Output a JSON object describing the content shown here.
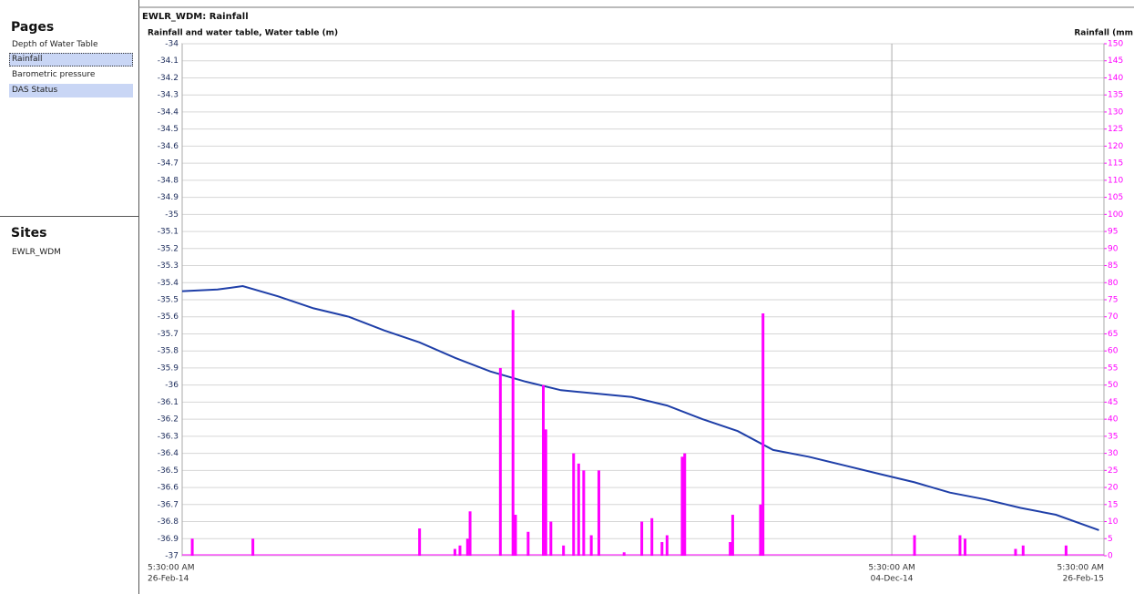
{
  "pages": {
    "title": "Pages",
    "items": [
      "Depth of Water Table",
      "Rainfall",
      "Barometric pressure",
      "DAS Status"
    ]
  },
  "sites": {
    "title": "Sites",
    "items": [
      "EWLR_WDM"
    ]
  },
  "chart_data": {
    "type": "combo",
    "title": "EWLR_WDM: Rainfall",
    "ylabel": "Rainfall and water table, Water table (m)",
    "y2label": "Rainfall (mm",
    "xlim": [
      "2014-02-26",
      "2015-02-26"
    ],
    "xticks": [
      {
        "value": "2014-02-26",
        "label": [
          "5:30:00 AM",
          "26-Feb-14"
        ]
      },
      {
        "value": "2014-12-04",
        "label": [
          "5:30:00 AM",
          "04-Dec-14"
        ]
      },
      {
        "value": "2015-02-26",
        "label": [
          "5:30:00 AM",
          "26-Feb-15"
        ]
      }
    ],
    "ylim": [
      -37,
      -34
    ],
    "yticks": [
      -34,
      -34.1,
      -34.2,
      -34.3,
      -34.4,
      -34.5,
      -34.6,
      -34.7,
      -34.8,
      -34.9,
      -35,
      -35.1,
      -35.2,
      -35.3,
      -35.4,
      -35.5,
      -35.6,
      -35.7,
      -35.8,
      -35.9,
      -36,
      -36.1,
      -36.2,
      -36.3,
      -36.4,
      -36.5,
      -36.6,
      -36.7,
      -36.8,
      -36.9,
      -37
    ],
    "y2lim": [
      0,
      150
    ],
    "y2ticks": [
      0,
      5,
      10,
      15,
      20,
      25,
      30,
      35,
      40,
      45,
      50,
      55,
      60,
      65,
      70,
      75,
      80,
      85,
      90,
      95,
      100,
      105,
      110,
      115,
      120,
      125,
      130,
      135,
      140,
      145,
      150
    ],
    "grid": true,
    "series": [
      {
        "type": "line",
        "color": "#1f3fa8",
        "x": [
          "2014-02-26",
          "2014-03-12",
          "2014-03-22",
          "2014-04-05",
          "2014-04-19",
          "2014-05-03",
          "2014-05-17",
          "2014-05-31",
          "2014-06-14",
          "2014-06-28",
          "2014-07-12",
          "2014-07-26",
          "2014-08-09",
          "2014-08-23",
          "2014-09-06",
          "2014-09-20",
          "2014-10-04",
          "2014-10-18",
          "2014-11-01",
          "2014-11-15",
          "2014-11-29",
          "2014-12-13",
          "2014-12-27",
          "2015-01-10",
          "2015-01-24",
          "2015-02-07",
          "2015-02-24"
        ],
        "values": [
          -35.45,
          -35.44,
          -35.42,
          -35.48,
          -35.55,
          -35.6,
          -35.68,
          -35.75,
          -35.84,
          -35.92,
          -35.98,
          -36.03,
          -36.05,
          -36.07,
          -36.12,
          -36.2,
          -36.27,
          -36.38,
          -36.42,
          -36.47,
          -36.52,
          -36.57,
          -36.63,
          -36.67,
          -36.72,
          -36.76,
          -36.85
        ]
      },
      {
        "type": "bar",
        "axis": "y2",
        "color": "#ff00ff",
        "x": [
          "2014-03-02",
          "2014-03-26",
          "2014-05-31",
          "2014-06-14",
          "2014-06-16",
          "2014-06-19",
          "2014-06-20",
          "2014-07-02",
          "2014-07-07",
          "2014-07-08",
          "2014-07-13",
          "2014-07-19",
          "2014-07-20",
          "2014-07-22",
          "2014-07-27",
          "2014-07-31",
          "2014-08-02",
          "2014-08-04",
          "2014-08-07",
          "2014-08-10",
          "2014-08-20",
          "2014-08-27",
          "2014-08-31",
          "2014-09-04",
          "2014-09-06",
          "2014-09-12",
          "2014-09-13",
          "2014-10-01",
          "2014-10-02",
          "2014-10-13",
          "2014-10-14",
          "2014-12-13",
          "2014-12-31",
          "2015-01-02",
          "2015-01-22",
          "2015-01-25",
          "2015-02-11"
        ],
        "values": [
          5,
          5,
          8,
          2,
          3,
          5,
          13,
          55,
          72,
          12,
          7,
          50,
          37,
          10,
          3,
          30,
          27,
          25,
          6,
          25,
          1,
          10,
          11,
          4,
          6,
          29,
          30,
          4,
          12,
          15,
          71,
          6,
          6,
          5,
          2,
          3,
          3
        ]
      }
    ]
  }
}
